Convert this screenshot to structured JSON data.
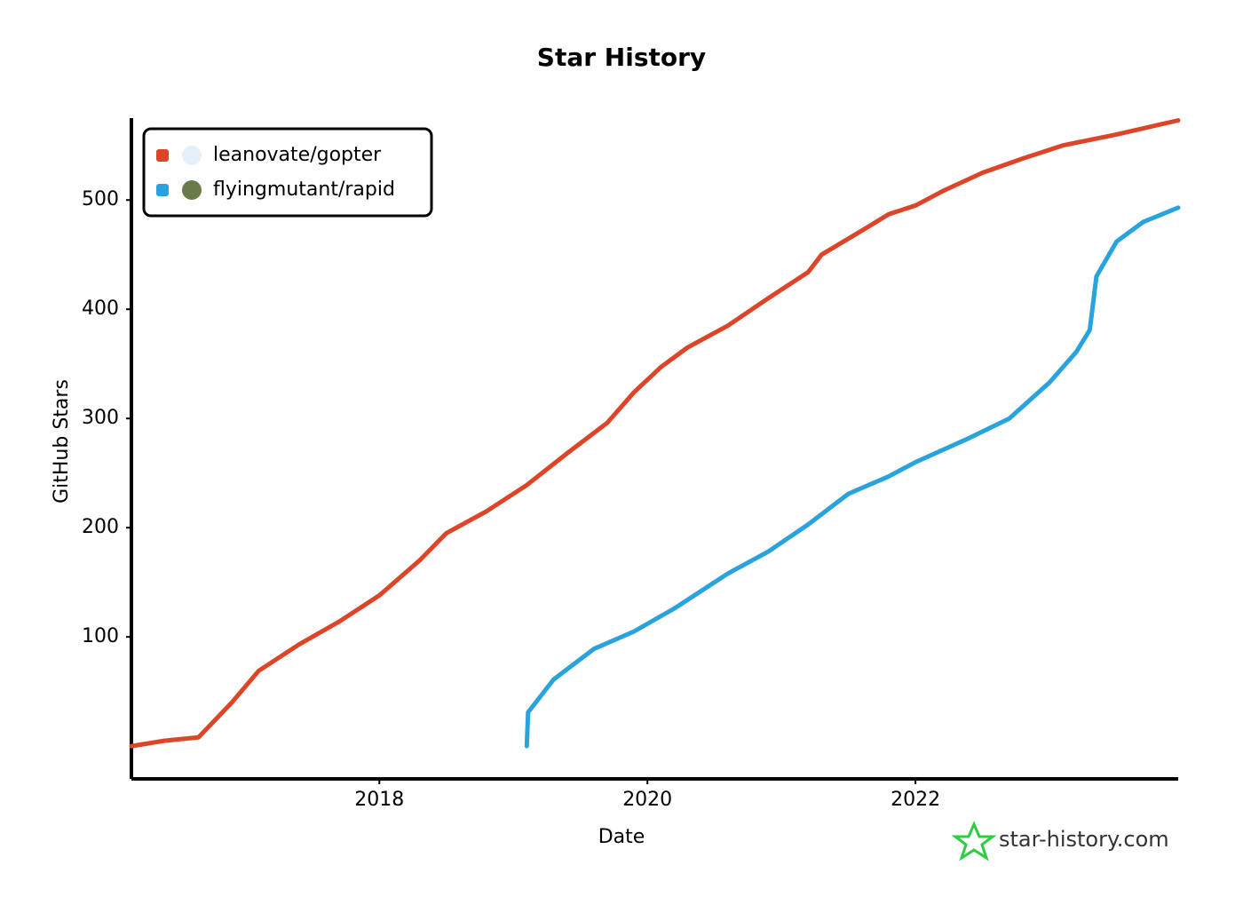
{
  "chart_data": {
    "type": "line",
    "title": "Star History",
    "x_label": "Date",
    "y_label": "GitHub Stars",
    "xlim": [
      2016.15,
      2023.96
    ],
    "xticks": [
      2018,
      2020,
      2022
    ],
    "ylim": [
      -30,
      575
    ],
    "yticks": [
      100,
      200,
      300,
      400,
      500
    ],
    "legend": "top-left",
    "watermark": "star-history.com",
    "series": [
      {
        "name": "leanovate/gopter",
        "color": "#dd4528",
        "x": [
          2016.15,
          2016.4,
          2016.65,
          2016.9,
          2017.1,
          2017.4,
          2017.7,
          2018.0,
          2018.3,
          2018.5,
          2018.8,
          2019.1,
          2019.4,
          2019.7,
          2019.9,
          2020.1,
          2020.3,
          2020.6,
          2020.9,
          2021.2,
          2021.3,
          2021.6,
          2021.8,
          2022.0,
          2022.2,
          2022.5,
          2022.8,
          2023.1,
          2023.5,
          2023.96
        ],
        "values": [
          0,
          5,
          8,
          40,
          69,
          93,
          114,
          138,
          170,
          195,
          215,
          239,
          268,
          296,
          324,
          347,
          365,
          385,
          410,
          434,
          450,
          472,
          487,
          495,
          508,
          525,
          538,
          550,
          560,
          573
        ]
      },
      {
        "name": "flyingmutant/rapid",
        "color": "#28a3dd",
        "x": [
          2019.1,
          2019.11,
          2019.3,
          2019.6,
          2019.9,
          2020.2,
          2020.4,
          2020.6,
          2020.9,
          2021.2,
          2021.5,
          2021.8,
          2022.0,
          2022.4,
          2022.7,
          2023.0,
          2023.2,
          2023.3,
          2023.35,
          2023.5,
          2023.7,
          2023.96
        ],
        "values": [
          0,
          31,
          61,
          89,
          105,
          126,
          142,
          158,
          178,
          203,
          231,
          247,
          260,
          282,
          300,
          333,
          361,
          381,
          430,
          462,
          480,
          493
        ]
      }
    ]
  }
}
